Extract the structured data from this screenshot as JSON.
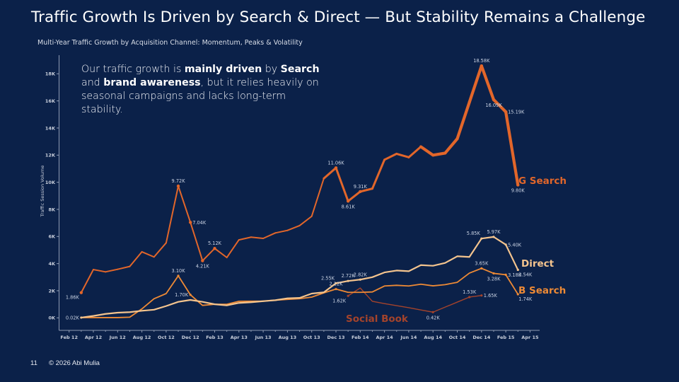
{
  "slide": {
    "title": "Traffic Growth Is Driven by Search & Direct — But Stability Remains a Challenge",
    "page_number": "11",
    "copyright": "© 2026 Abi Mulia",
    "insight": {
      "parts": [
        {
          "text": "Our traffic growth is ",
          "bold": false
        },
        {
          "text": "mainly driven",
          "bold": true
        },
        {
          "text": " by ",
          "bold": false
        },
        {
          "text": "Search",
          "bold": true
        },
        {
          "text": " and ",
          "bold": false
        },
        {
          "text": "brand awareness",
          "bold": true
        },
        {
          "text": ", but it relies heavily on seasonal campaigns and lacks long-term stability.",
          "bold": false
        }
      ]
    }
  },
  "colors": {
    "background": "#0b2149",
    "g_search": "#e2662a",
    "direct": "#f4c48e",
    "b_search": "#ee8a35",
    "social_book": "#a4432b"
  },
  "chart_data": {
    "type": "line",
    "title": "Multi-Year Traffic Growth by Acquisition Channel: Momentum, Peaks & Volatility",
    "xlabel": "",
    "ylabel": "Traffic Session Volume",
    "ylim": [
      0,
      18000
    ],
    "yticks": [
      0,
      2000,
      4000,
      6000,
      8000,
      10000,
      12000,
      14000,
      16000,
      18000
    ],
    "ytick_labels": [
      "0K",
      "2K",
      "4K",
      "6K",
      "8K",
      "10K",
      "12K",
      "14K",
      "16K",
      "18K"
    ],
    "xticks": [
      "Feb 12",
      "Apr 12",
      "Jun 12",
      "Aug 12",
      "Oct 12",
      "Dec 12",
      "Feb 13",
      "Apr 13",
      "Jun 13",
      "Aug 13",
      "Oct 13",
      "Dec 13",
      "Feb 14",
      "Apr 14",
      "Jun 14",
      "Aug 14",
      "Oct 14",
      "Dec 14",
      "Feb 15",
      "Apr 15"
    ],
    "x_months_range": [
      "Feb 12",
      "Apr 15"
    ],
    "grid": false,
    "legend": "inline labels at line ends",
    "x": [
      "Mar 12",
      "Apr 12",
      "May 12",
      "Jun 12",
      "Jul 12",
      "Aug 12",
      "Sep 12",
      "Oct 12",
      "Nov 12",
      "Dec 12",
      "Jan 13",
      "Feb 13",
      "Mar 13",
      "Apr 13",
      "May 13",
      "Jun 13",
      "Jul 13",
      "Aug 13",
      "Sep 13",
      "Oct 13",
      "Nov 13",
      "Dec 13",
      "Jan 14",
      "Feb 14",
      "Mar 14",
      "Apr 14",
      "May 14",
      "Jun 14",
      "Jul 14",
      "Aug 14",
      "Sep 14",
      "Oct 14",
      "Nov 14",
      "Dec 14",
      "Jan 15",
      "Feb 15",
      "Mar 15"
    ],
    "series": [
      {
        "name": "G Search",
        "color_key": "g_search",
        "start_index": 0,
        "values": [
          1860,
          3560,
          3390,
          3580,
          3790,
          4870,
          4490,
          5530,
          9720,
          7040,
          4210,
          5120,
          4450,
          5750,
          5950,
          5860,
          6260,
          6450,
          6800,
          7490,
          10280,
          11060,
          8610,
          9310,
          9530,
          11660,
          12100,
          11840,
          12620,
          12000,
          12150,
          13210,
          15900,
          18580,
          16090,
          15190,
          9800
        ],
        "labels": [
          {
            "index": 0,
            "text": "1.86K",
            "pos": "below-left"
          },
          {
            "index": 8,
            "text": "9.72K",
            "pos": "above"
          },
          {
            "index": 9,
            "text": "7.04K",
            "pos": "right"
          },
          {
            "index": 10,
            "text": "4.21K",
            "pos": "below"
          },
          {
            "index": 11,
            "text": "5.12K",
            "pos": "above"
          },
          {
            "index": 21,
            "text": "11.06K",
            "pos": "above"
          },
          {
            "index": 22,
            "text": "8.61K",
            "pos": "below"
          },
          {
            "index": 23,
            "text": "9.31K",
            "pos": "above"
          },
          {
            "index": 33,
            "text": "18.58K",
            "pos": "above"
          },
          {
            "index": 34,
            "text": "16.09K",
            "pos": "below"
          },
          {
            "index": 35,
            "text": "15.19K",
            "pos": "right"
          },
          {
            "index": 36,
            "text": "9.80K",
            "pos": "below"
          }
        ]
      },
      {
        "name": "Direct",
        "color_key": "direct",
        "start_index": 0,
        "values": [
          20,
          140,
          290,
          380,
          420,
          520,
          600,
          870,
          1180,
          1320,
          1180,
          1000,
          920,
          1100,
          1150,
          1230,
          1300,
          1440,
          1470,
          1790,
          1880,
          2550,
          2720,
          2820,
          3000,
          3350,
          3490,
          3440,
          3890,
          3840,
          4050,
          4540,
          4490,
          5850,
          5970,
          5400,
          3540
        ],
        "labels": [
          {
            "index": 0,
            "text": "0.02K",
            "pos": "left"
          },
          {
            "index": 21,
            "text": "2.55K",
            "pos": "above-left"
          },
          {
            "index": 22,
            "text": "2.72K",
            "pos": "above"
          },
          {
            "index": 23,
            "text": "2.82K",
            "pos": "above"
          },
          {
            "index": 33,
            "text": "5.85K",
            "pos": "above-left"
          },
          {
            "index": 34,
            "text": "5.97K",
            "pos": "above"
          },
          {
            "index": 35,
            "text": "5.40K",
            "pos": "right"
          },
          {
            "index": 36,
            "text": "3.54K",
            "pos": "below-right"
          }
        ]
      },
      {
        "name": "B Search",
        "color_key": "b_search",
        "start_index": 0,
        "values": [
          20,
          20,
          20,
          20,
          50,
          660,
          1410,
          1790,
          3100,
          1700,
          920,
          1000,
          1000,
          1220,
          1230,
          1230,
          1300,
          1360,
          1410,
          1530,
          1840,
          2120,
          1880,
          1880,
          1910,
          2350,
          2400,
          2350,
          2480,
          2360,
          2450,
          2620,
          3300,
          3650,
          3280,
          3180,
          1740
        ],
        "labels": [
          {
            "index": 8,
            "text": "3.10K",
            "pos": "above"
          },
          {
            "index": 9,
            "text": "1.70K",
            "pos": "left"
          },
          {
            "index": 21,
            "text": "2.12K",
            "pos": "above"
          },
          {
            "index": 33,
            "text": "3.65K",
            "pos": "above"
          },
          {
            "index": 34,
            "text": "3.28K",
            "pos": "below"
          },
          {
            "index": 35,
            "text": "3.18K",
            "pos": "right"
          },
          {
            "index": 36,
            "text": "1.74K",
            "pos": "below-right"
          }
        ]
      },
      {
        "name": "Social Book",
        "color_key": "social_book",
        "start_index": 22,
        "values": [
          1620,
          2200,
          1220,
          1050,
          900,
          750,
          580,
          420,
          790,
          1160,
          1530,
          1650
        ],
        "labels": [
          {
            "index": 0,
            "text": "1.62K",
            "pos": "below-left"
          },
          {
            "index": 7,
            "text": "0.42K",
            "pos": "below"
          },
          {
            "index": 10,
            "text": "1.53K",
            "pos": "above"
          },
          {
            "index": 11,
            "text": "1.65K",
            "pos": "right"
          }
        ]
      }
    ]
  }
}
